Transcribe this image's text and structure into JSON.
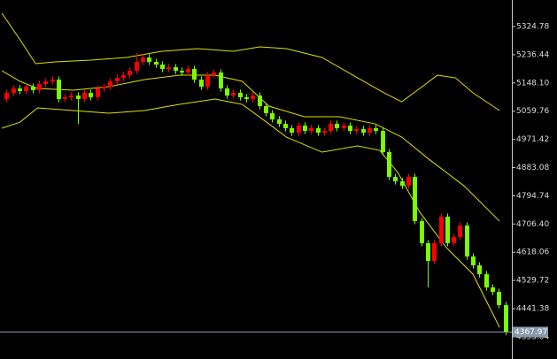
{
  "chart_data": {
    "type": "candlestick",
    "xlim": [
      -1,
      78
    ],
    "ylim": [
      4283.6,
      5407.9
    ],
    "yticks": [
      5324.78,
      5236.44,
      {
        "value": 5148.1,
        "label": "5148.10"
      },
      5059.76,
      4971.42,
      4883.08,
      4794.74,
      {
        "value": 4706.4,
        "label": "4706.40"
      },
      4618.06,
      4529.72,
      4441.38,
      4353.04
    ],
    "up_color": "#ff0000",
    "down_color": "#7cfc00",
    "band_color": "#e0e000",
    "open": [
      5097.7,
      5117.1,
      5130.9,
      5122.6,
      5136.4,
      5125.4,
      5144.8,
      5153.1,
      5158.6,
      5097.7,
      5103.2,
      5108.7,
      5097.7,
      5117.1,
      5103.2,
      5130.9,
      5136.4,
      5153.1,
      5164.1,
      5172.4,
      5186.3,
      5214.0,
      5227.9,
      5214.0,
      5205.7,
      5191.8,
      5197.4,
      5186.3,
      5180.8,
      5191.8,
      5158.6,
      5136.4,
      5172.4,
      5180.8,
      5130.9,
      5108.7,
      5117.1,
      5103.2,
      5097.7,
      5108.7,
      5075.5,
      5053.3,
      5034.0,
      5020.1,
      5006.3,
      4992.4,
      5014.6,
      4998.0,
      5006.3,
      4992.4,
      4998.0,
      5020.1,
      5006.3,
      5014.6,
      4998.0,
      5003.5,
      4992.4,
      5006.3,
      4998.0,
      4931.5,
      4853.9,
      4840.1,
      4826.2,
      4853.9,
      4715.4,
      4646.2,
      4590.8,
      4646.2,
      4729.3,
      4646.2,
      4665.5,
      4701.5,
      4604.6,
      4576.9,
      4549.2,
      4507.7,
      4493.8,
      4452.3
    ],
    "high": [
      5127.1,
      5140.9,
      5140.9,
      5146.4,
      5146.4,
      5154.8,
      5163.1,
      5168.6,
      5168.6,
      5113.2,
      5118.7,
      5118.7,
      5127.1,
      5127.1,
      5140.9,
      5146.4,
      5163.1,
      5174.1,
      5182.4,
      5196.3,
      5241.7,
      5237.9,
      5237.9,
      5224.0,
      5215.7,
      5207.4,
      5207.4,
      5196.3,
      5201.8,
      5201.8,
      5168.6,
      5182.4,
      5190.8,
      5190.8,
      5140.9,
      5127.1,
      5127.1,
      5113.2,
      5118.7,
      5118.7,
      5085.5,
      5063.3,
      5044.0,
      5030.1,
      5016.3,
      5024.6,
      5024.6,
      5016.3,
      5016.3,
      5008.0,
      5030.1,
      5030.1,
      5024.6,
      5024.6,
      5013.5,
      5013.5,
      5016.3,
      5016.3,
      5008.0,
      4941.5,
      4863.9,
      4850.1,
      4863.9,
      4863.9,
      4725.4,
      4656.2,
      4656.2,
      4739.3,
      4739.3,
      4675.5,
      4711.5,
      4711.5,
      4614.6,
      4586.9,
      4559.2,
      4517.7,
      4503.8,
      4462.3
    ],
    "low": [
      5087.7,
      5107.1,
      5112.6,
      5112.6,
      5115.4,
      5115.4,
      5134.8,
      5143.1,
      5087.7,
      5087.7,
      5093.2,
      5020.1,
      5087.7,
      5093.2,
      5093.2,
      5120.9,
      5126.4,
      5143.1,
      5154.1,
      5162.4,
      5176.3,
      5204.0,
      5204.0,
      5195.7,
      5181.8,
      5181.8,
      5176.3,
      5170.8,
      5170.8,
      5148.6,
      5126.4,
      5126.4,
      5162.4,
      5120.9,
      5098.7,
      5098.7,
      5093.2,
      5087.7,
      5087.7,
      5065.5,
      5043.3,
      5024.0,
      5010.1,
      4996.3,
      4982.4,
      4982.4,
      4988.0,
      4988.0,
      4982.4,
      4982.4,
      4988.0,
      4996.3,
      4996.3,
      4988.0,
      4988.0,
      4982.4,
      4982.4,
      4988.0,
      4921.5,
      4843.9,
      4830.1,
      4816.2,
      4816.2,
      4705.4,
      4636.2,
      4507.7,
      4580.8,
      4636.2,
      4636.2,
      4636.2,
      4655.5,
      4594.6,
      4566.9,
      4539.2,
      4497.7,
      4483.8,
      4442.3,
      4357.97
    ],
    "close": [
      5117.1,
      5130.9,
      5122.6,
      5136.4,
      5125.4,
      5144.8,
      5153.1,
      5158.6,
      5097.7,
      5103.2,
      5108.7,
      5097.7,
      5117.1,
      5103.2,
      5130.9,
      5136.4,
      5153.1,
      5164.1,
      5172.4,
      5186.3,
      5214.0,
      5227.9,
      5214.0,
      5205.7,
      5191.8,
      5197.4,
      5186.3,
      5180.8,
      5191.8,
      5158.6,
      5136.4,
      5172.4,
      5180.8,
      5130.9,
      5108.7,
      5117.1,
      5103.2,
      5097.7,
      5108.7,
      5075.5,
      5053.3,
      5034.0,
      5020.1,
      5006.3,
      4992.4,
      5014.6,
      4998.0,
      5006.3,
      4992.4,
      4998.0,
      5020.1,
      5006.3,
      5014.6,
      4998.0,
      5003.5,
      4992.4,
      5006.3,
      4998.0,
      4931.5,
      4853.9,
      4840.1,
      4826.2,
      4853.9,
      4715.4,
      4646.2,
      4590.8,
      4646.2,
      4729.3,
      4646.2,
      4665.5,
      4701.5,
      4604.6,
      4576.9,
      4549.2,
      4507.7,
      4493.8,
      4452.3,
      4367.97
    ],
    "upper_band": {
      "x": [
        -0.7,
        2.1,
        4.5,
        7.5,
        13,
        18.5,
        24,
        29.5,
        35,
        39.1,
        43.2,
        48.7,
        54.2,
        58.3,
        61,
        63.8,
        66.5,
        69.3,
        72,
        76.1
      ],
      "values": [
        5366.4,
        5283.3,
        5208.5,
        5214.0,
        5219.5,
        5227.9,
        5247.2,
        5255.6,
        5247.2,
        5261.1,
        5255.6,
        5227.9,
        5164.1,
        5117.1,
        5089.4,
        5130.9,
        5172.4,
        5164.1,
        5117.1,
        5061.7
      ]
    },
    "middle_band": {
      "x": [
        -0.7,
        2.1,
        4.8,
        10.3,
        15.8,
        21.3,
        26.7,
        32.2,
        36.4,
        40.5,
        46,
        51.4,
        56.9,
        61,
        65.2,
        70.6,
        76.1
      ],
      "values": [
        5186.3,
        5153.1,
        5130.9,
        5125.4,
        5136.4,
        5158.6,
        5172.4,
        5172.4,
        5153.1,
        5075.5,
        5042.3,
        5042.3,
        5020.1,
        4978.6,
        4909.3,
        4826.2,
        4715.4
      ]
    },
    "lower_band": {
      "x": [
        -0.7,
        2.1,
        4.8,
        10.3,
        15.8,
        21.3,
        26.7,
        32.2,
        36.4,
        40.5,
        43.2,
        48.7,
        54.2,
        57.6,
        60.4,
        63.8,
        67.9,
        72,
        76.1
      ],
      "values": [
        5006.3,
        5025.6,
        5070.0,
        5061.7,
        5053.3,
        5061.7,
        5081.0,
        5097.7,
        5081.0,
        5020.1,
        4978.6,
        4931.5,
        4950.9,
        4937.0,
        4867.8,
        4743.1,
        4632.3,
        4549.2,
        4383.0
      ]
    }
  }
}
